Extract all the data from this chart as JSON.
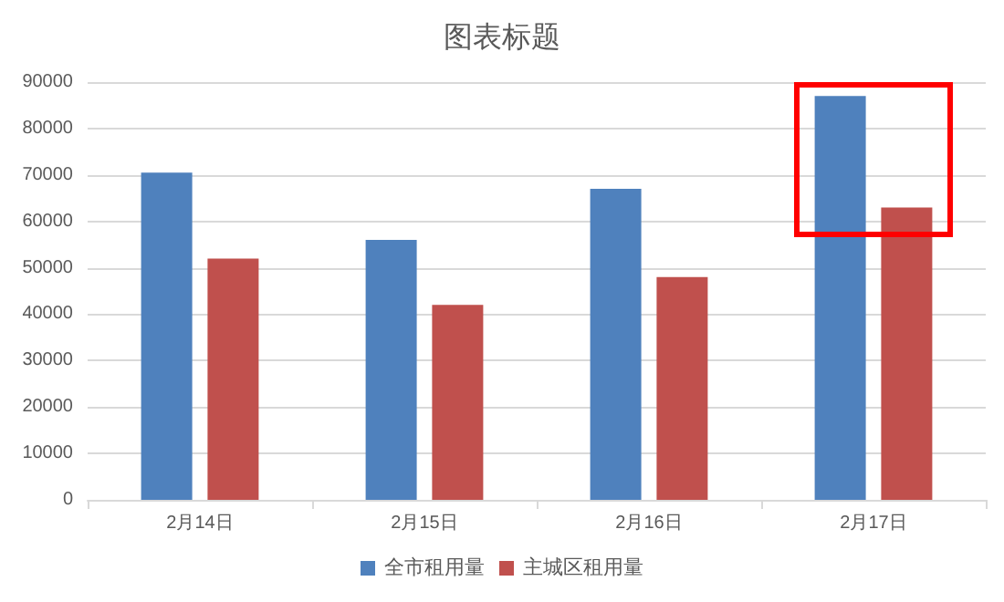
{
  "chart_data": {
    "type": "bar",
    "title": "图表标题",
    "categories": [
      "2月14日",
      "2月15日",
      "2月16日",
      "2月17日"
    ],
    "series": [
      {
        "name": "全市租用量",
        "color": "#4f81bd",
        "values": [
          70500,
          56000,
          67000,
          87000
        ]
      },
      {
        "name": "主城区租用量",
        "color": "#c0504d",
        "values": [
          52000,
          42000,
          48000,
          63000
        ]
      }
    ],
    "ylim": [
      0,
      90000
    ],
    "yticks": [
      0,
      10000,
      20000,
      30000,
      40000,
      50000,
      60000,
      70000,
      80000,
      90000
    ],
    "grid": "y",
    "legend": "bottom"
  }
}
